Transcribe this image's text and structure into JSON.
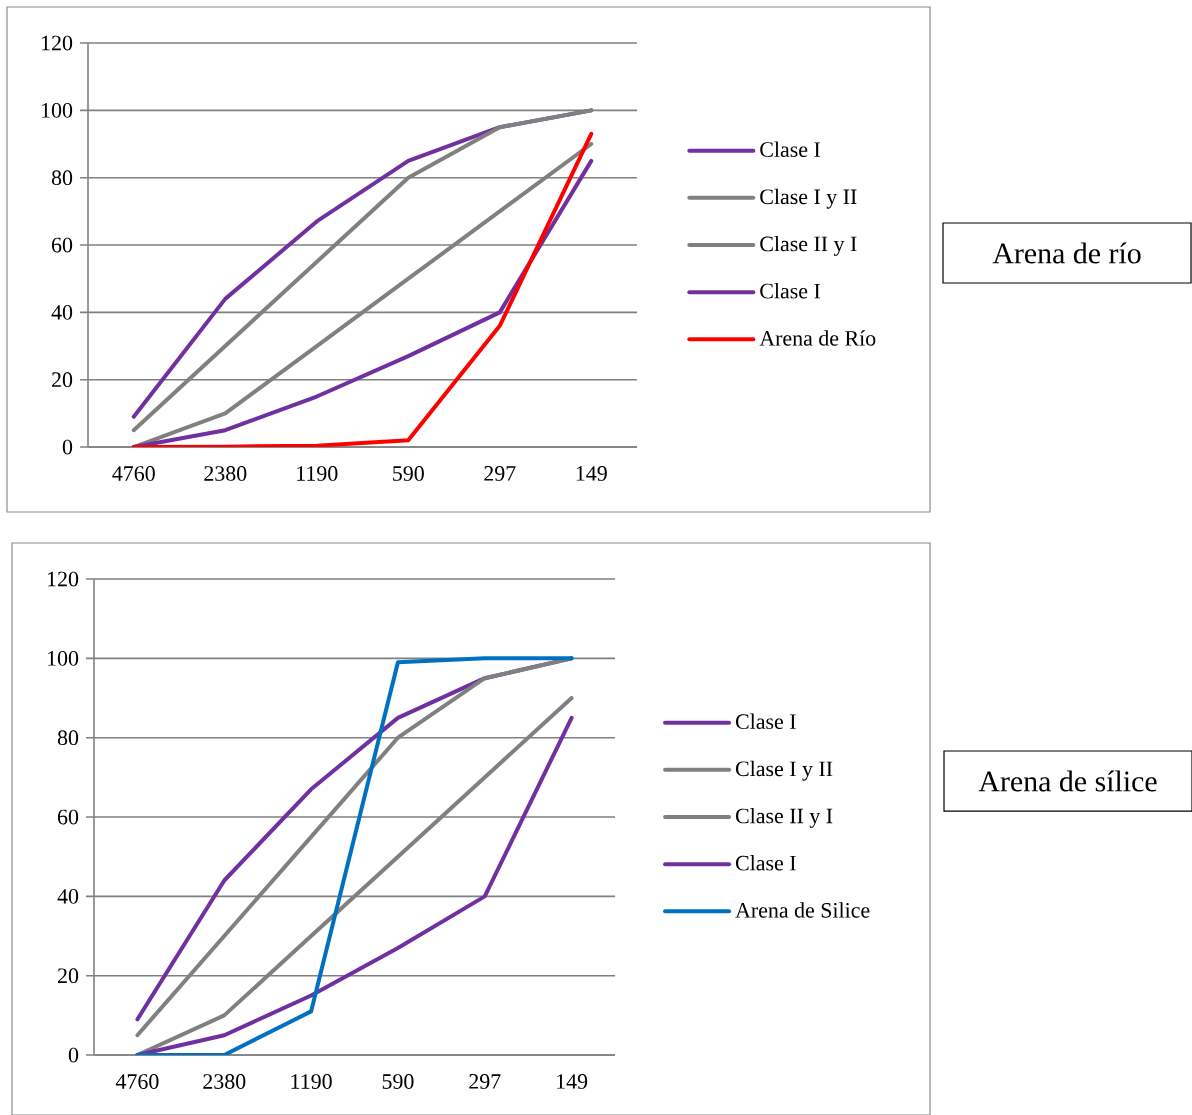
{
  "chart_data": [
    {
      "type": "line",
      "annotations": [
        "Arena de río"
      ],
      "categories": [
        "4760",
        "2380",
        "1190",
        "590",
        "297",
        "149"
      ],
      "ylim": [
        0,
        120
      ],
      "yticks": [
        0,
        20,
        40,
        60,
        80,
        100,
        120
      ],
      "grid": "y",
      "legend": "right",
      "series": [
        {
          "name": "Clase I",
          "color": "#7030a0",
          "values": [
            9,
            44,
            67,
            85,
            95,
            100
          ]
        },
        {
          "name": "Clase I y II",
          "color": "#808080",
          "values": [
            5,
            30,
            55,
            80,
            95,
            100
          ]
        },
        {
          "name": "Clase II y I",
          "color": "#808080",
          "values": [
            0,
            10,
            30,
            50,
            70,
            90
          ]
        },
        {
          "name": "Clase I",
          "color": "#7030a0",
          "values": [
            0,
            5,
            15,
            27,
            40,
            85
          ]
        },
        {
          "name": "Arena de Río",
          "color": "#ff0000",
          "values": [
            0,
            0.1,
            0.4,
            2,
            36,
            93
          ]
        }
      ]
    },
    {
      "type": "line",
      "annotations": [
        "Arena de sílice"
      ],
      "categories": [
        "4760",
        "2380",
        "1190",
        "590",
        "297",
        "149"
      ],
      "ylim": [
        0,
        120
      ],
      "yticks": [
        0,
        20,
        40,
        60,
        80,
        100,
        120
      ],
      "grid": "y",
      "legend": "right",
      "series": [
        {
          "name": "Clase I",
          "color": "#7030a0",
          "values": [
            9,
            44,
            67,
            85,
            95,
            100
          ]
        },
        {
          "name": "Clase I y II",
          "color": "#808080",
          "values": [
            5,
            30,
            55,
            80,
            95,
            100
          ]
        },
        {
          "name": "Clase II y I",
          "color": "#808080",
          "values": [
            0,
            10,
            30,
            50,
            70,
            90
          ]
        },
        {
          "name": "Clase I",
          "color": "#7030a0",
          "values": [
            0,
            5,
            15,
            27,
            40,
            85
          ]
        },
        {
          "name": "Arena de Silice",
          "color": "#0070c0",
          "values": [
            0,
            0,
            11,
            99,
            100,
            100
          ]
        }
      ]
    }
  ]
}
